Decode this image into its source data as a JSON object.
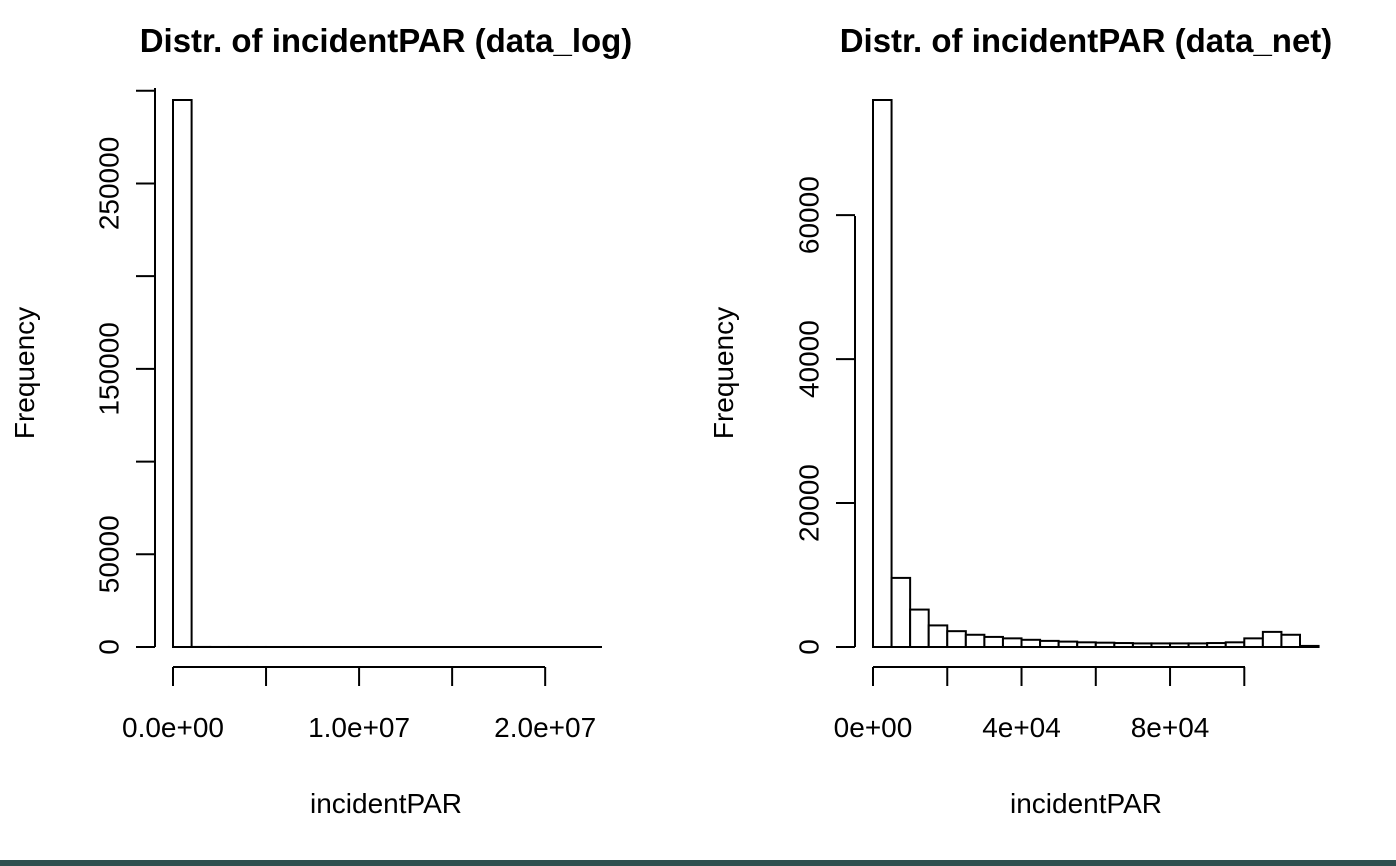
{
  "chart_data": [
    {
      "type": "bar",
      "title": "Distr. of incidentPAR (data_log)",
      "xlabel": "incidentPAR",
      "ylabel": "Frequency",
      "bin_width": 1000000,
      "bins_start": 0,
      "values": [
        295000,
        30,
        15,
        10,
        8,
        6,
        5,
        4,
        3,
        3,
        2,
        2,
        2,
        2,
        2,
        1,
        1,
        1,
        1,
        1,
        1,
        1,
        1
      ],
      "xlim": [
        0,
        23000000
      ],
      "ylim": [
        0,
        295000
      ],
      "x_ticks": [
        0,
        5000000,
        10000000,
        15000000,
        20000000
      ],
      "x_tick_labels": [
        "0.0e+00",
        "",
        "1.0e+07",
        "",
        "2.0e+07"
      ],
      "y_ticks": [
        0,
        50000,
        100000,
        150000,
        200000,
        250000,
        300000
      ],
      "y_tick_labels": [
        "0",
        "50000",
        "",
        "150000",
        "",
        "250000",
        ""
      ]
    },
    {
      "type": "bar",
      "title": "Distr. of incidentPAR (data_net)",
      "xlabel": "incidentPAR",
      "ylabel": "Frequency",
      "bin_width": 5000,
      "bins_start": 0,
      "values": [
        76000,
        9600,
        5200,
        3000,
        2200,
        1700,
        1400,
        1200,
        1000,
        850,
        750,
        650,
        600,
        550,
        500,
        500,
        500,
        500,
        550,
        650,
        1200,
        2100,
        1700,
        150
      ],
      "xlim": [
        0,
        115000
      ],
      "ylim": [
        0,
        76000
      ],
      "x_ticks": [
        0,
        20000,
        40000,
        60000,
        80000,
        100000
      ],
      "x_tick_labels": [
        "0e+00",
        "",
        "4e+04",
        "",
        "8e+04",
        ""
      ],
      "y_ticks": [
        0,
        20000,
        40000,
        60000
      ],
      "y_tick_labels": [
        "0",
        "20000",
        "40000",
        "60000"
      ]
    }
  ]
}
